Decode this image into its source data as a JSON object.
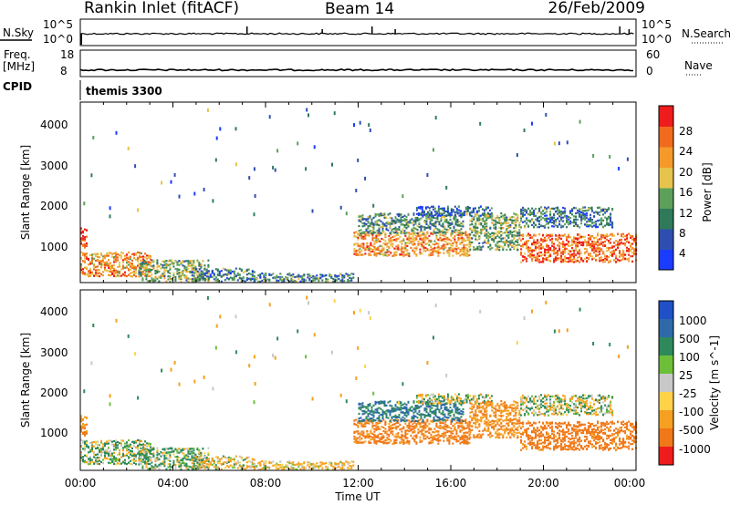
{
  "header": {
    "station": "Rankin Inlet (fitACF)",
    "beam": "Beam 14",
    "date": "26/Feb/2009"
  },
  "strip": {
    "nsky_label": "N.Sky",
    "nsearch_label": "N.Search",
    "freq_label": "Freq.",
    "freq_unit": "[MHz]",
    "nave_label": "Nave",
    "cpid_label": "CPID",
    "cpid_value": "themis 3300",
    "noise_ticks": [
      "10^5",
      "10^0"
    ],
    "freq_ticks": [
      "18",
      "8"
    ],
    "nave_ticks": [
      "60",
      "0"
    ],
    "nsky_spikes_hours": [
      7.2,
      10.45,
      12.6,
      13.6,
      23.3,
      23.7
    ],
    "freq_mhz": 10.5,
    "nave_level": 0.8
  },
  "x_axis": {
    "label": "Time UT",
    "ticks": [
      "00:00",
      "04:00",
      "08:00",
      "12:00",
      "16:00",
      "20:00",
      "00:00"
    ],
    "range_hours": [
      0,
      24
    ]
  },
  "colors": {
    "power_scale": [
      "#1a3cff",
      "#2e4fb0",
      "#2e7a5a",
      "#5da05a",
      "#e6c34a",
      "#f59a2a",
      "#f26a1e",
      "#ee1c1c"
    ],
    "velocity_scale": [
      "#2050c8",
      "#2e6aa8",
      "#2e8a5a",
      "#6dbf3a",
      "#c8c8c8",
      "#ffd24a",
      "#f5a020",
      "#f07818",
      "#ee1c1c"
    ]
  },
  "chart_data": [
    {
      "type": "heatmap",
      "title": "Power",
      "xlabel": "Time UT",
      "ylabel": "Slant Range [km]",
      "xlim_hours": [
        0,
        24
      ],
      "ylim_km": [
        180,
        4600
      ],
      "y_ticks": [
        "4000",
        "3000",
        "2000",
        "1000"
      ],
      "y_tick_values": [
        4000,
        3000,
        2000,
        1000
      ],
      "colorbar": {
        "label": "Power [dB]",
        "range": [
          0,
          32
        ],
        "ticks": [
          "28",
          "24",
          "20",
          "16",
          "12",
          "8",
          "4"
        ],
        "tick_values": [
          28,
          24,
          20,
          16,
          12,
          8,
          4
        ]
      },
      "echo_regions": [
        {
          "t_start": 0.0,
          "t_end": 0.3,
          "r_center": 1300,
          "r_half_width": 250,
          "level": 0.85
        },
        {
          "t_start": 0.0,
          "t_end": 3.0,
          "r_center": 650,
          "r_half_width": 300,
          "level": 0.7
        },
        {
          "t_start": 2.5,
          "t_end": 5.5,
          "r_center": 450,
          "r_half_width": 300,
          "level": 0.45
        },
        {
          "t_start": 4.8,
          "t_end": 7.5,
          "r_center": 350,
          "r_half_width": 200,
          "level": 0.3
        },
        {
          "t_start": 7.5,
          "t_end": 11.8,
          "r_center": 300,
          "r_half_width": 130,
          "level": 0.3
        },
        {
          "t_start": 11.8,
          "t_end": 16.8,
          "r_center": 1150,
          "r_half_width": 300,
          "level": 0.7
        },
        {
          "t_start": 12.0,
          "t_end": 16.5,
          "r_center": 1650,
          "r_half_width": 250,
          "level": 0.35
        },
        {
          "t_start": 14.5,
          "t_end": 17.8,
          "r_center": 1950,
          "r_half_width": 120,
          "level": 0.2
        },
        {
          "t_start": 16.8,
          "t_end": 19.0,
          "r_center": 1450,
          "r_half_width": 450,
          "level": 0.45
        },
        {
          "t_start": 19.0,
          "t_end": 24.0,
          "r_center": 1050,
          "r_half_width": 350,
          "level": 0.8
        },
        {
          "t_start": 19.0,
          "t_end": 23.0,
          "r_center": 1800,
          "r_half_width": 250,
          "level": 0.3
        }
      ]
    },
    {
      "type": "heatmap",
      "title": "Velocity",
      "xlabel": "Time UT",
      "ylabel": "Slant Range [km]",
      "xlim_hours": [
        0,
        24
      ],
      "ylim_km": [
        180,
        4600
      ],
      "y_ticks": [
        "4000",
        "3000",
        "2000",
        "1000"
      ],
      "y_tick_values": [
        4000,
        3000,
        2000,
        1000
      ],
      "colorbar": {
        "label": "Velocity [m s^-1]",
        "ticks": [
          "1000",
          "500",
          "100",
          "25",
          "-25",
          "-100",
          "-500",
          "-1000"
        ],
        "tick_values": [
          1000,
          500,
          100,
          25,
          -25,
          -100,
          -500,
          -1000
        ]
      },
      "echo_regions": [
        {
          "t_start": 0.0,
          "t_end": 0.3,
          "r_center": 1300,
          "r_half_width": 250,
          "velocity": -300
        },
        {
          "t_start": 0.0,
          "t_end": 3.0,
          "r_center": 650,
          "r_half_width": 300,
          "velocity": 50
        },
        {
          "t_start": 2.5,
          "t_end": 5.5,
          "r_center": 450,
          "r_half_width": 300,
          "velocity": 80
        },
        {
          "t_start": 4.8,
          "t_end": 7.5,
          "r_center": 350,
          "r_half_width": 200,
          "velocity": -60
        },
        {
          "t_start": 7.5,
          "t_end": 11.8,
          "r_center": 300,
          "r_half_width": 130,
          "velocity": -120
        },
        {
          "t_start": 11.8,
          "t_end": 16.8,
          "r_center": 1150,
          "r_half_width": 300,
          "velocity": -400
        },
        {
          "t_start": 12.0,
          "t_end": 16.5,
          "r_center": 1650,
          "r_half_width": 250,
          "velocity": 300
        },
        {
          "t_start": 14.5,
          "t_end": 17.8,
          "r_center": 1950,
          "r_half_width": 120,
          "velocity": 0
        },
        {
          "t_start": 16.8,
          "t_end": 19.0,
          "r_center": 1450,
          "r_half_width": 450,
          "velocity": -250
        },
        {
          "t_start": 19.0,
          "t_end": 24.0,
          "r_center": 1050,
          "r_half_width": 350,
          "velocity": -450
        },
        {
          "t_start": 19.0,
          "t_end": 23.0,
          "r_center": 1800,
          "r_half_width": 250,
          "velocity": 10
        }
      ]
    }
  ]
}
